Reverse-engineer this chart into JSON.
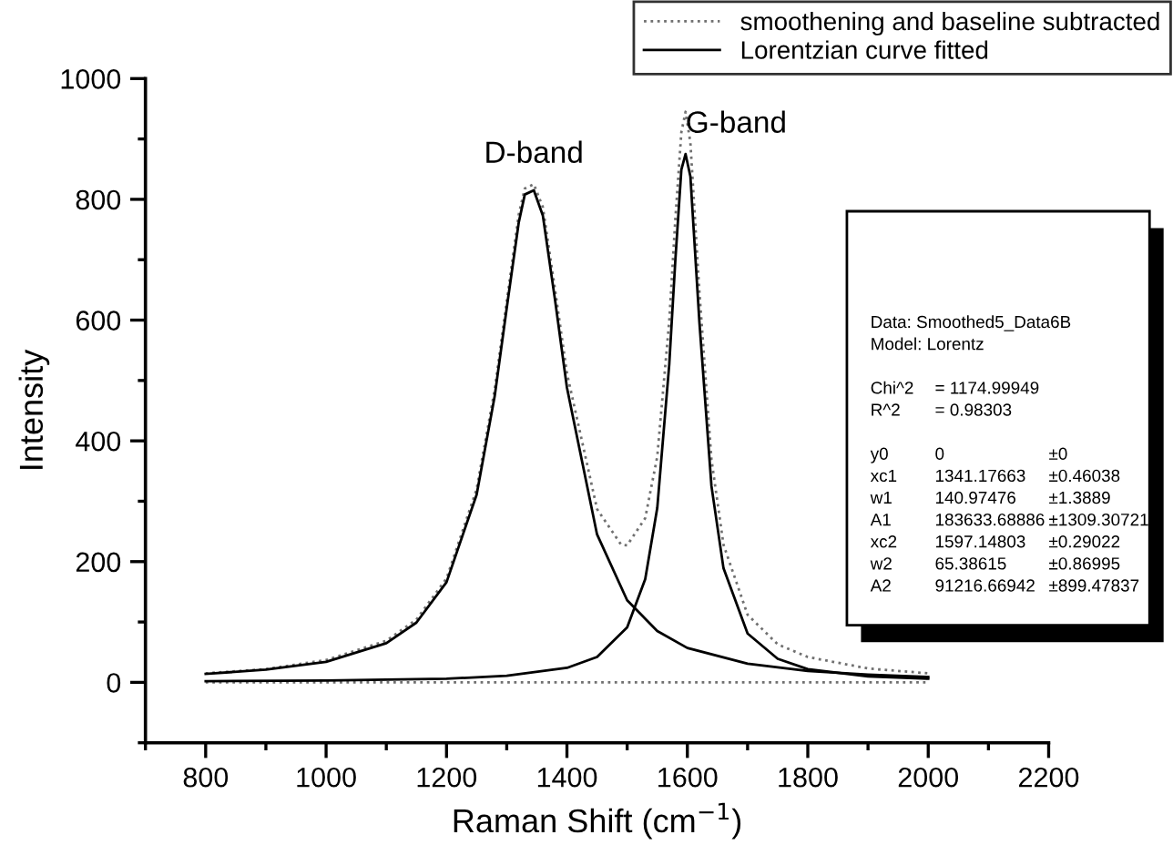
{
  "chart_data": {
    "type": "line",
    "xlabel": "Raman Shift (cm$^{−1}$)",
    "ylabel": "Intensity",
    "xlim": [
      700,
      2200
    ],
    "xticks": [
      800,
      1000,
      1200,
      1400,
      1600,
      1800,
      2000,
      2200
    ],
    "ylim": [
      -100,
      1000
    ],
    "yticks": [
      0,
      200,
      400,
      600,
      800,
      1000
    ],
    "legend": "top right",
    "grid": false,
    "series": [
      {
        "name": "smoothening and baseline subtracted",
        "color": "#707070",
        "line_style": "dotted",
        "x": [
          800,
          900,
          1000,
          1100,
          1150,
          1200,
          1250,
          1280,
          1300,
          1320,
          1330,
          1345,
          1360,
          1380,
          1400,
          1450,
          1490,
          1500,
          1530,
          1550,
          1570,
          1580,
          1590,
          1597,
          1605,
          1620,
          1640,
          1660,
          1700,
          1750,
          1800,
          1900,
          2000
        ],
        "values": [
          15,
          22,
          37,
          69,
          104,
          172,
          320,
          485,
          631,
          775,
          818,
          825,
          787,
          652,
          512,
          287,
          228,
          227,
          272,
          374,
          600,
          767,
          911,
          945,
          894,
          646,
          369,
          228,
          112,
          63,
          42,
          23,
          15
        ]
      },
      {
        "color": "#707070",
        "line_style": "dotted",
        "x": [
          800,
          2000
        ],
        "values": [
          0,
          0
        ]
      },
      {
        "name": "Lorentzian curve fitted",
        "color": "#000000",
        "line_style": "solid",
        "x": [
          800,
          900,
          1000,
          1100,
          1150,
          1200,
          1250,
          1280,
          1300,
          1320,
          1330,
          1345,
          1360,
          1380,
          1400,
          1450,
          1500,
          1550,
          1600,
          1700,
          1800,
          1900,
          2000
        ],
        "values": [
          14,
          21,
          34,
          65,
          99,
          166,
          311,
          474,
          620,
          762,
          808,
          815,
          773,
          635,
          488,
          245,
          136,
          85,
          57,
          31,
          19,
          13,
          9
        ]
      },
      {
        "color": "#000000",
        "line_style": "solid",
        "x": [
          800,
          1000,
          1200,
          1300,
          1400,
          1450,
          1500,
          1530,
          1550,
          1570,
          1580,
          1590,
          1597,
          1605,
          1620,
          1640,
          1660,
          1700,
          1750,
          1800,
          1900,
          2000
        ],
        "values": [
          2,
          3,
          6,
          11,
          24,
          42,
          91,
          171,
          289,
          528,
          699,
          849,
          875,
          838,
          596,
          325,
          189,
          81,
          39,
          22,
          10,
          6
        ]
      }
    ],
    "annotations": [
      {
        "text": "D-band",
        "x": 1345,
        "y": 825
      },
      {
        "text": "G-band",
        "x": 1597,
        "y": 875
      },
      "Data: Smoothed5_Data6B",
      "Model: Lorentz",
      "Chi^2  = 1174.99949",
      "R^2  = 0.98303",
      "y0  0  ±0",
      "xc1  1341.17663  ±0.46038",
      "w1  140.97476  ±1.3889",
      "A1  183633.68886  ±1309.30721",
      "xc2  1597.14803  ±0.29022",
      "w2  65.38615  ±0.86995",
      "A2  91216.66942  ±899.47837"
    ]
  }
}
